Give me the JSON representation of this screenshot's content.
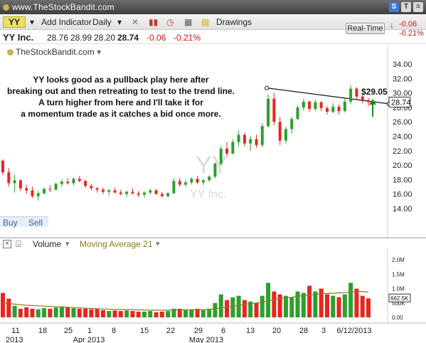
{
  "topbar": {
    "brand": "www.TheStockBandit.com"
  },
  "toolbar": {
    "symbol": "YY",
    "add_indicator": "Add Indicator",
    "interval": "Daily",
    "drawings": "Drawings"
  },
  "quote": {
    "name": "YY Inc.",
    "open": "28.76",
    "high": "28.99",
    "low": "28.20",
    "last": "28.74",
    "change": "-0.06",
    "change_pct": "-0.21%"
  },
  "realtime": {
    "label": "Real-Time",
    "change": "-0.06",
    "change_pct": "-0.21%"
  },
  "source_label": "TheStockBandit.com",
  "buy": "Buy",
  "sell": "Sell",
  "volume_panel": {
    "label": "Volume",
    "ma_label": "Moving Average 21"
  },
  "colors": {
    "up": "#2ca02c",
    "down": "#e8261e",
    "ma": "#8b7b1a",
    "arrow": "#1a8a1a"
  },
  "chart_data": [
    {
      "type": "candlestick",
      "watermark": "YY",
      "watermark_sub": "YY Inc.",
      "annotation": "YY looks good as a pullback play here after breaking out and then retreating to test to the trend line. A turn higher from here and I'll take it for a momentum trade as it catches a bid once more.",
      "target_label": "$29.05",
      "last_label": "28.74",
      "ylim": [
        12,
        35
      ],
      "yticks": [
        "14.00",
        "16.00",
        "18.00",
        "20.00",
        "22.00",
        "24.00",
        "26.00",
        "28.00",
        "30.00",
        "32.00",
        "34.00"
      ],
      "xtick_labels": [
        "11",
        "18",
        "25",
        "1",
        "8",
        "15",
        "22",
        "29",
        "6",
        "13",
        "20",
        "28",
        "3",
        "6/12/2013"
      ],
      "xlabels_bottom": [
        "2013",
        "Apr 2013",
        "May 2013"
      ],
      "trendline": {
        "from_index": 45,
        "to_index": 65,
        "from": 30.7,
        "to": 28.5
      },
      "ohlc": [
        [
          20.6,
          20.8,
          18.6,
          19.0
        ],
        [
          19.0,
          19.6,
          17.0,
          17.5
        ],
        [
          17.5,
          18.6,
          16.2,
          17.9
        ],
        [
          17.9,
          18.0,
          16.4,
          16.8
        ],
        [
          16.8,
          17.3,
          16.0,
          16.5
        ],
        [
          16.5,
          17.0,
          15.4,
          15.7
        ],
        [
          15.7,
          16.4,
          15.1,
          16.1
        ],
        [
          16.1,
          16.9,
          15.9,
          16.7
        ],
        [
          16.7,
          17.2,
          16.3,
          16.6
        ],
        [
          16.6,
          17.6,
          16.5,
          17.4
        ],
        [
          17.4,
          18.0,
          17.0,
          17.7
        ],
        [
          17.7,
          18.2,
          17.3,
          17.5
        ],
        [
          17.5,
          18.3,
          17.2,
          18.1
        ],
        [
          18.1,
          18.5,
          17.6,
          17.8
        ],
        [
          17.8,
          18.0,
          16.9,
          17.1
        ],
        [
          17.1,
          17.4,
          16.5,
          16.8
        ],
        [
          16.8,
          17.0,
          16.2,
          16.6
        ],
        [
          16.6,
          16.9,
          16.0,
          16.3
        ],
        [
          16.3,
          16.7,
          15.8,
          16.5
        ],
        [
          16.5,
          16.9,
          16.1,
          16.2
        ],
        [
          16.2,
          16.6,
          15.8,
          16.0
        ],
        [
          16.0,
          16.5,
          15.6,
          16.3
        ],
        [
          16.3,
          16.8,
          15.9,
          16.1
        ],
        [
          16.1,
          16.4,
          15.6,
          15.9
        ],
        [
          15.9,
          16.4,
          15.5,
          16.2
        ],
        [
          16.2,
          16.7,
          15.9,
          16.5
        ],
        [
          16.5,
          16.7,
          15.9,
          16.0
        ],
        [
          16.0,
          16.3,
          15.5,
          15.7
        ],
        [
          15.7,
          16.3,
          15.5,
          16.1
        ],
        [
          16.1,
          18.2,
          16.0,
          17.8
        ],
        [
          17.8,
          18.2,
          17.0,
          17.3
        ],
        [
          17.3,
          17.9,
          17.0,
          17.6
        ],
        [
          17.6,
          18.3,
          17.3,
          18.1
        ],
        [
          18.1,
          18.5,
          17.4,
          17.6
        ],
        [
          17.6,
          18.1,
          17.2,
          17.9
        ],
        [
          17.9,
          18.6,
          17.7,
          18.4
        ],
        [
          18.4,
          20.4,
          18.2,
          20.2
        ],
        [
          20.2,
          22.7,
          20.0,
          22.3
        ],
        [
          22.3,
          23.2,
          21.2,
          21.6
        ],
        [
          21.6,
          23.6,
          21.5,
          23.2
        ],
        [
          23.2,
          24.8,
          22.6,
          24.2
        ],
        [
          24.2,
          24.5,
          22.6,
          23.0
        ],
        [
          23.0,
          24.0,
          22.0,
          23.6
        ],
        [
          23.6,
          24.2,
          22.4,
          22.8
        ],
        [
          22.8,
          25.8,
          22.5,
          25.4
        ],
        [
          25.4,
          29.8,
          25.2,
          29.2
        ],
        [
          29.2,
          30.0,
          25.5,
          26.0
        ],
        [
          26.0,
          26.7,
          22.8,
          23.4
        ],
        [
          23.4,
          25.3,
          23.0,
          25.0
        ],
        [
          25.0,
          26.7,
          24.4,
          26.4
        ],
        [
          26.4,
          28.3,
          26.2,
          28.0
        ],
        [
          28.0,
          29.2,
          27.6,
          28.8
        ],
        [
          28.8,
          29.0,
          27.4,
          27.8
        ],
        [
          27.8,
          29.1,
          27.5,
          28.7
        ],
        [
          28.7,
          28.9,
          27.5,
          27.9
        ],
        [
          27.9,
          28.2,
          27.0,
          27.4
        ],
        [
          27.4,
          28.6,
          27.2,
          28.1
        ],
        [
          28.1,
          28.4,
          27.0,
          27.5
        ],
        [
          27.5,
          29.3,
          27.3,
          28.8
        ],
        [
          28.8,
          31.1,
          28.5,
          30.6
        ],
        [
          30.6,
          30.8,
          29.0,
          29.5
        ],
        [
          29.5,
          29.9,
          28.6,
          29.0
        ],
        [
          29.0,
          29.3,
          28.2,
          28.74
        ]
      ]
    },
    {
      "type": "bar",
      "series_label": "Volume",
      "ma_label": "Moving Average 21",
      "ylim": [
        0,
        2.25
      ],
      "yticks": [
        "0.00",
        "500K",
        "1.0M",
        "1.5M",
        "2.0M"
      ],
      "last_label": "662.5K",
      "values": [
        0.85,
        0.65,
        0.4,
        0.3,
        0.35,
        0.3,
        0.28,
        0.32,
        0.3,
        0.34,
        0.38,
        0.35,
        0.32,
        0.3,
        0.3,
        0.28,
        0.3,
        0.25,
        0.22,
        0.24,
        0.22,
        0.24,
        0.22,
        0.2,
        0.2,
        0.22,
        0.18,
        0.2,
        0.22,
        0.3,
        0.3,
        0.25,
        0.28,
        0.3,
        0.25,
        0.3,
        0.5,
        0.8,
        0.6,
        0.7,
        0.75,
        0.6,
        0.55,
        0.5,
        0.75,
        1.2,
        0.9,
        0.8,
        0.75,
        0.7,
        0.9,
        0.85,
        1.1,
        0.9,
        1.0,
        0.8,
        0.75,
        0.7,
        0.8,
        1.2,
        1.0,
        0.75,
        0.66
      ],
      "ma21": [
        0.5,
        0.48,
        0.46,
        0.44,
        0.42,
        0.41,
        0.4,
        0.39,
        0.38,
        0.37,
        0.36,
        0.35,
        0.34,
        0.33,
        0.32,
        0.31,
        0.3,
        0.29,
        0.29,
        0.28,
        0.28,
        0.27,
        0.27,
        0.26,
        0.26,
        0.25,
        0.25,
        0.25,
        0.25,
        0.25,
        0.26,
        0.26,
        0.26,
        0.27,
        0.27,
        0.28,
        0.3,
        0.33,
        0.35,
        0.38,
        0.42,
        0.45,
        0.48,
        0.5,
        0.53,
        0.58,
        0.62,
        0.65,
        0.68,
        0.7,
        0.73,
        0.76,
        0.78,
        0.8,
        0.82,
        0.83,
        0.84,
        0.85,
        0.86,
        0.88,
        0.9,
        0.9,
        0.88
      ]
    }
  ]
}
